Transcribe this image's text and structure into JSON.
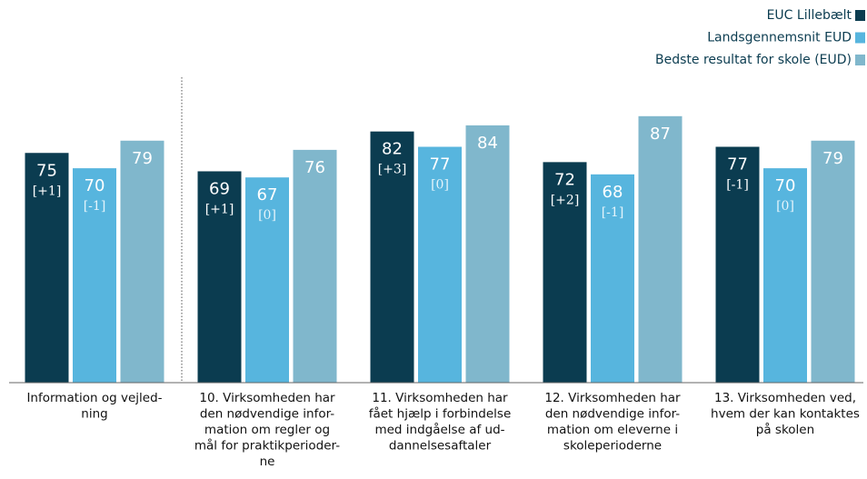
{
  "chart_data": {
    "type": "bar",
    "categories": [
      [
        "Information og vejled-",
        "ning"
      ],
      [
        "10. Virksomheden har",
        "den nødvendige infor-",
        "mation om regler og",
        "mål for praktikperioder-",
        "ne"
      ],
      [
        "11. Virksomheden har",
        "fået hjælp i forbindelse",
        "med indgåelse af ud-",
        "dannelsesaftaler"
      ],
      [
        "12. Virksomheden har",
        "den nødvendige infor-",
        "mation om eleverne i",
        "skoleperioderne"
      ],
      [
        "13. Virksomheden ved,",
        "hvem der kan kontaktes",
        "på skolen"
      ]
    ],
    "series": [
      {
        "name": "EUC Lillebælt",
        "color": "#0b3c50",
        "values": [
          75,
          69,
          82,
          72,
          77
        ],
        "changes": [
          "[+1]",
          "[+1]",
          "[+3]",
          "[+2]",
          "[-1]"
        ]
      },
      {
        "name": "Landsgennemsnit EUD",
        "color": "#57b5de",
        "values": [
          70,
          67,
          77,
          68,
          70
        ],
        "changes": [
          "[-1]",
          "[0]",
          "[0]",
          "[-1]",
          "[0]"
        ]
      },
      {
        "name": "Bedste resultat for skole (EUD)",
        "color": "#80b7cc",
        "values": [
          79,
          76,
          84,
          87,
          79
        ]
      }
    ],
    "ylim": [
      0,
      100
    ],
    "legend": "top-right"
  }
}
